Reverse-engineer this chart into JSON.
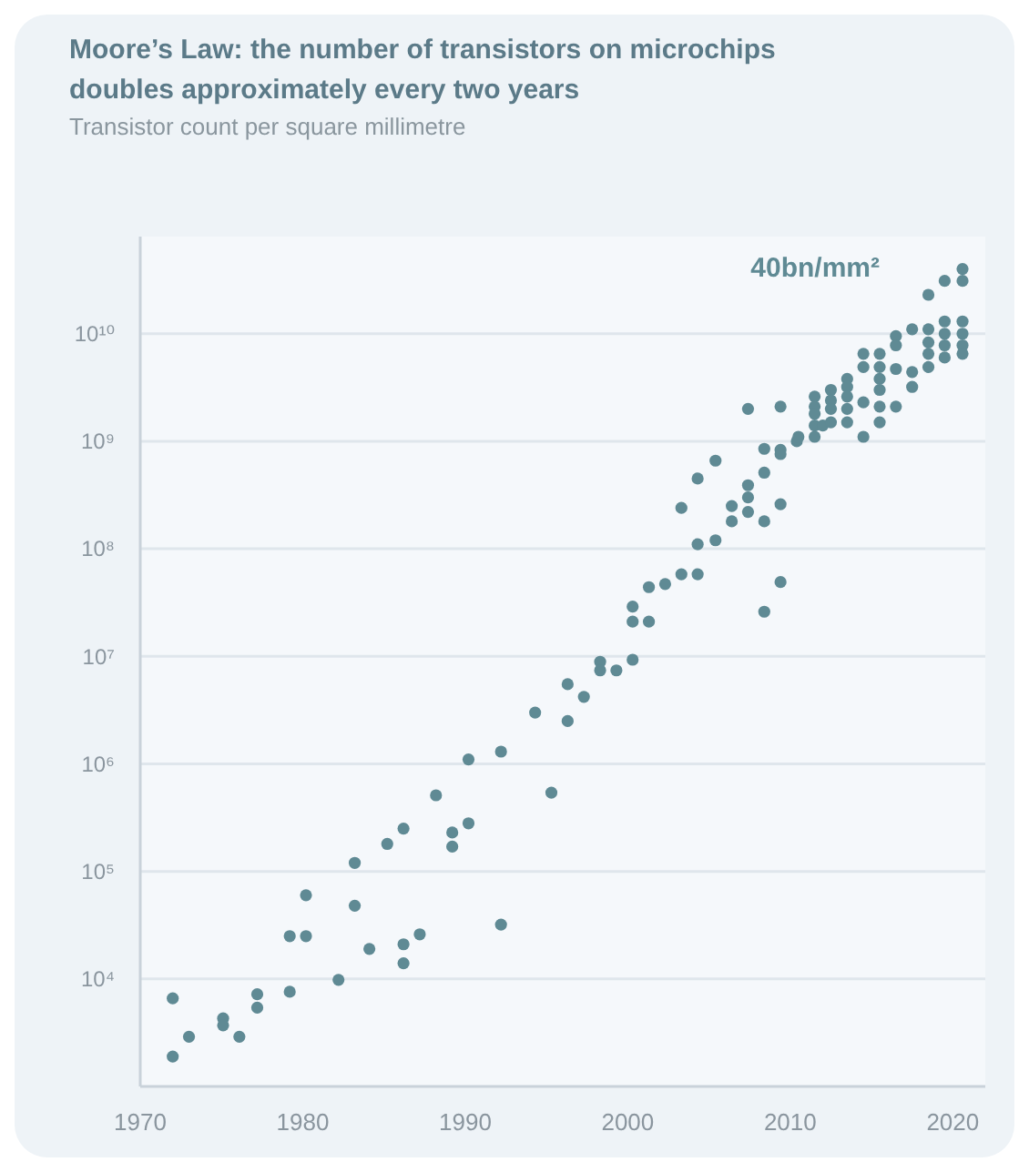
{
  "chart_data": {
    "type": "scatter",
    "title": "Moore’s Law: the number of transistors on microchips doubles approximately every two years",
    "subtitle": "Transistor count per square millimetre",
    "annotations": [
      "40bn/mm²"
    ],
    "log": "y",
    "grid": "y",
    "marker": "circle",
    "xlim": [
      1970,
      2022
    ],
    "xticks": [
      1970,
      1980,
      1990,
      2000,
      2010,
      2020
    ],
    "ylim": [
      1000,
      80000000000
    ],
    "yticks": [
      {
        "value": 10000000000,
        "label": "10¹⁰"
      },
      {
        "value": 1000000000,
        "label": "10⁹"
      },
      {
        "value": 100000000,
        "label": "10⁸"
      },
      {
        "value": 10000000,
        "label": "10⁷"
      },
      {
        "value": 1000000,
        "label": "10⁶"
      },
      {
        "value": 100000,
        "label": "10⁵"
      },
      {
        "value": 10000,
        "label": "10⁴"
      }
    ],
    "series": [
      {
        "color": "#5f8a94",
        "x": [
          1972,
          1972,
          1973,
          1975.1,
          1975.1,
          1976.1,
          1977.2,
          1977.2,
          1979.2,
          1979.2,
          1980.2,
          1980.2,
          1982.2,
          1983.2,
          1983.2,
          1984.1,
          1985.2,
          1986.2,
          1986.2,
          1986.2,
          1987.2,
          1988.2,
          1989.2,
          1989.2,
          1990.2,
          1990.2,
          1992.2,
          1992.2,
          1994.3,
          1995.3,
          1996.3,
          1996.3,
          1997.3,
          1998.3,
          1998.3,
          1999.3,
          2000.3,
          2000.3,
          2000.3,
          2001.3,
          2001.3,
          2002.3,
          2003.3,
          2004.3,
          2004.3,
          2005.4,
          2003.3,
          2004.3,
          2005.4,
          2006.4,
          2006.4,
          2007.4,
          2007.4,
          2007.4,
          2008.4,
          2008.4,
          2008.4,
          2009.4,
          2009.4,
          2010.4,
          2007.4,
          2009.4,
          2008.4,
          2009.4,
          2009.4,
          2010.5,
          2011.5,
          2011.5,
          2011.5,
          2011.5,
          2011.5,
          2012,
          2012.5,
          2012.5,
          2012.5,
          2012.5,
          2013.5,
          2013.5,
          2013.5,
          2013.5,
          2013.5,
          2014.5,
          2014.5,
          2014.5,
          2014.5,
          2015.5,
          2015.5,
          2015.5,
          2015.5,
          2015.5,
          2015.5,
          2016.5,
          2016.5,
          2016.5,
          2016.5,
          2017.5,
          2017.5,
          2017.5,
          2018.5,
          2018.5,
          2018.5,
          2018.5,
          2018.5,
          2019.5,
          2019.5,
          2019.5,
          2019.5,
          2019.5,
          2020.6,
          2020.6,
          2020.6,
          2020.6,
          2020.6,
          2020.6
        ],
        "values": [
          6600,
          1900,
          2900,
          4300,
          3700,
          2900,
          7200,
          5400,
          7600,
          25000,
          25000,
          60000,
          9800,
          120000,
          48000,
          19000,
          180000,
          250000,
          21000,
          14000,
          26000,
          510000,
          230000,
          170000,
          280000,
          1100000,
          1300000,
          32000,
          3000000,
          540000,
          2500000,
          5500000,
          4200000,
          8900000,
          7400000,
          7400000,
          9300000,
          29000000,
          21000000,
          21000000,
          44000000,
          47000000,
          58000000,
          58000000,
          110000000,
          120000000,
          240000000,
          450000000,
          660000000,
          250000000,
          180000000,
          390000000,
          300000000,
          220000000,
          510000000,
          850000000,
          180000000,
          260000000,
          830000000,
          1000000000,
          2000000000,
          2100000000,
          26000000,
          49000000,
          760000000,
          1100000000,
          2600000000,
          2100000000,
          1800000000,
          1400000000,
          1100000000,
          1400000000,
          3000000000,
          2400000000,
          2000000000,
          1500000000,
          3800000000,
          3200000000,
          2600000000,
          2000000000,
          1500000000,
          2300000000,
          1100000000,
          6500000000,
          4900000000,
          6500000000,
          4900000000,
          3800000000,
          3000000000,
          2100000000,
          1500000000,
          9500000000,
          4700000000,
          2100000000,
          7800000000,
          11000000000,
          4400000000,
          3200000000,
          23000000000,
          11000000000,
          8300000000,
          6500000000,
          4900000000,
          31000000000,
          13000000000,
          10000000000,
          7800000000,
          6000000000,
          31000000000,
          40000000000,
          13000000000,
          10000000000,
          7800000000,
          6500000000
        ]
      }
    ]
  }
}
